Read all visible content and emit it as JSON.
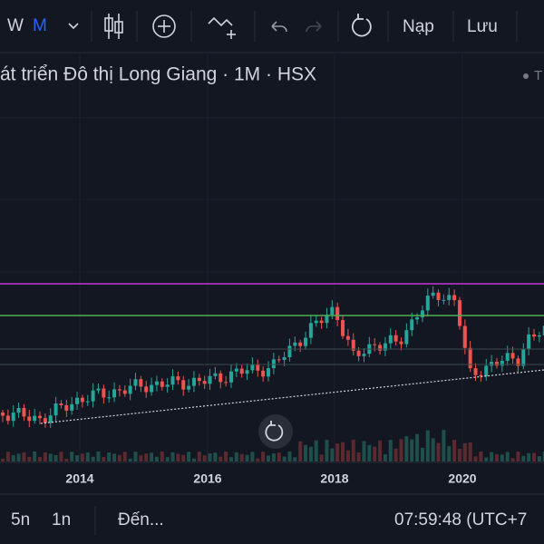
{
  "toolbar": {
    "intervals": [
      "W",
      "M"
    ],
    "actions": [
      "Nạp",
      "Lưu"
    ]
  },
  "chart_header": {
    "title": "át triển Đô thị Long Giang · 1M · HSX",
    "right_label": "T"
  },
  "x_axis": {
    "labels": [
      "2014",
      "2016",
      "2018",
      "2020"
    ]
  },
  "bottom_bar": {
    "ranges": [
      "5n",
      "1n"
    ],
    "goto": "Đến...",
    "clock": "07:59:48 (UTC+7"
  }
}
